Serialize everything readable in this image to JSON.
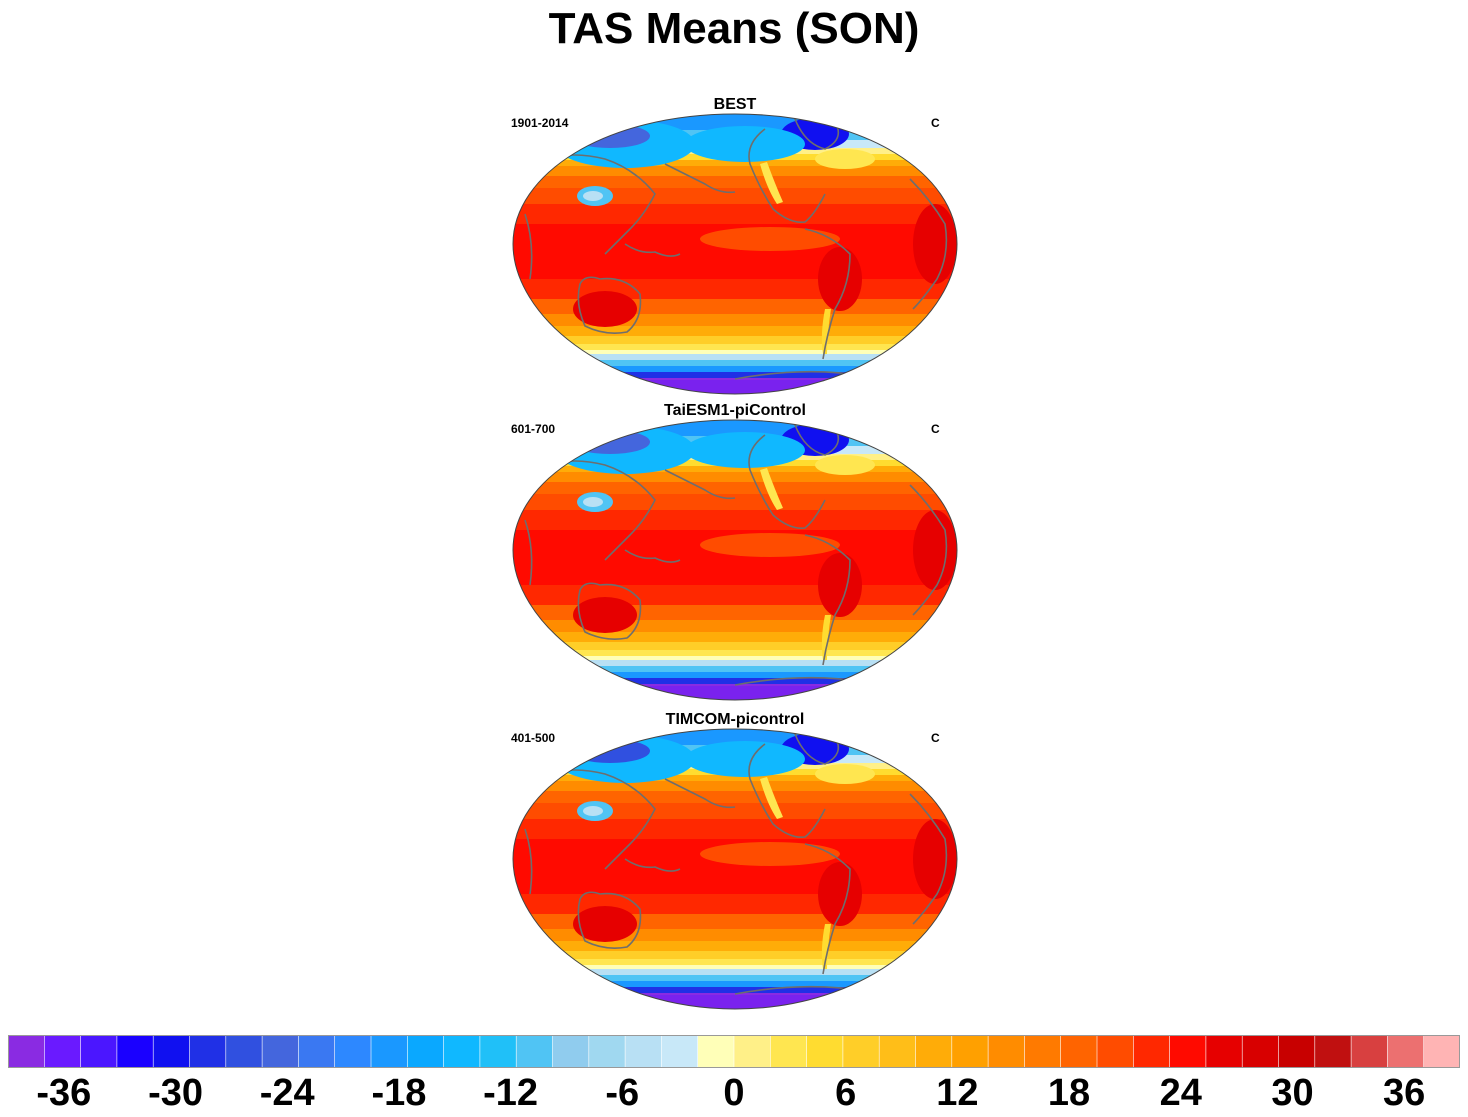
{
  "title": "TAS Means (SON)",
  "panels": [
    {
      "title": "BEST",
      "period": "1901-2014",
      "units": "C",
      "variant": 0
    },
    {
      "title": "TaiESM1-piControl",
      "period": "601-700",
      "units": "C",
      "variant": 1
    },
    {
      "title": "TIMCOM-picontrol",
      "period": "401-500",
      "units": "C",
      "variant": 2
    }
  ],
  "colorbar": {
    "colors": [
      "#8a2be2",
      "#6a1aff",
      "#4b16ff",
      "#1a00ff",
      "#1010f0",
      "#2030e6",
      "#3050e0",
      "#4466dd",
      "#3a78f2",
      "#2d88ff",
      "#1a98ff",
      "#0aa8ff",
      "#10b8ff",
      "#20c0f8",
      "#50c4f4",
      "#90ccee",
      "#a0d8f0",
      "#b8e0f4",
      "#c8e8f8",
      "#ffffb8",
      "#fff088",
      "#ffe650",
      "#ffdc30",
      "#ffce28",
      "#ffbe18",
      "#ffac08",
      "#ffa000",
      "#ff8c00",
      "#ff7a00",
      "#ff6400",
      "#ff4c00",
      "#ff2800",
      "#ff0a00",
      "#e60000",
      "#d80000",
      "#c80000",
      "#c01010",
      "#d84040",
      "#ec7070",
      "#ffb4b4"
    ],
    "tick_labels": [
      "-36",
      "-30",
      "-24",
      "-18",
      "-12",
      "-6",
      "0",
      "6",
      "12",
      "18",
      "24",
      "30",
      "36"
    ],
    "tick_values": [
      -36,
      -30,
      -24,
      -18,
      -12,
      -6,
      0,
      6,
      12,
      18,
      24,
      30,
      36
    ],
    "min": -39,
    "max": 39
  }
}
